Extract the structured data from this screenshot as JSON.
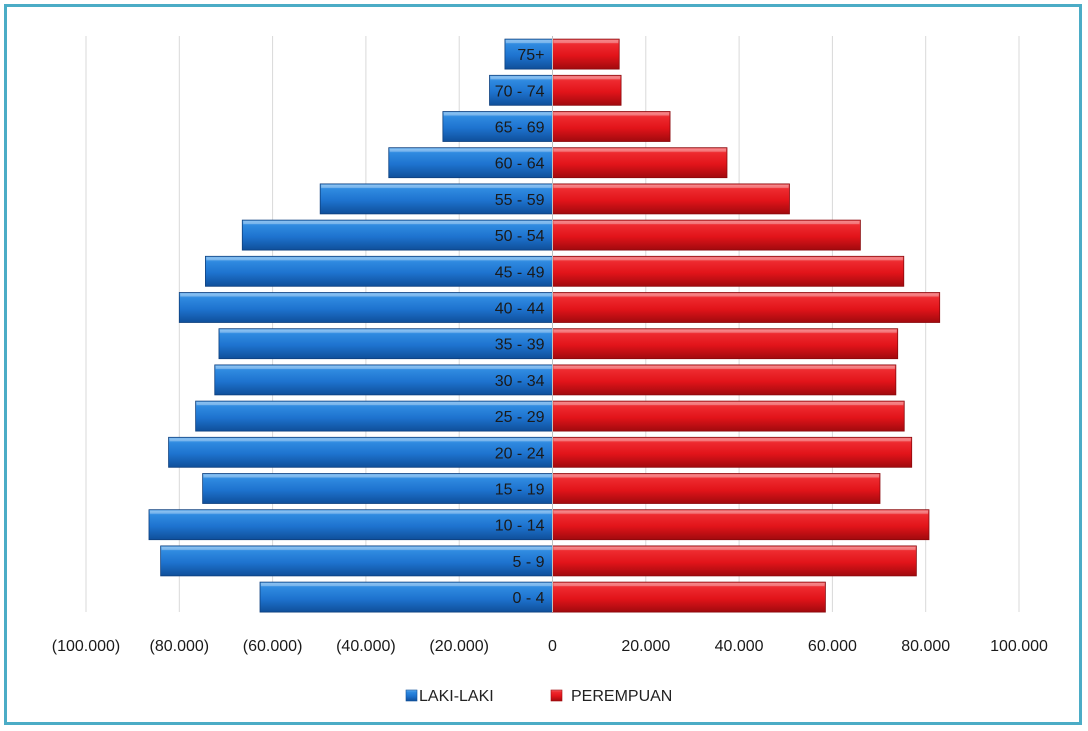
{
  "chart_data": {
    "type": "bar",
    "orientation": "horizontal",
    "layout": "population-pyramid",
    "categories": [
      "0 - 4",
      "5 - 9",
      "10 - 14",
      "15 - 19",
      "20 - 24",
      "25 - 29",
      "30 - 34",
      "35 - 39",
      "40 - 44",
      "45 - 49",
      "50 - 54",
      "55 - 59",
      "60 - 64",
      "65 - 69",
      "70 - 74",
      "75+"
    ],
    "series": [
      {
        "name": "LAKI-LAKI",
        "color": "#1f78d6",
        "values": [
          -62700,
          -84000,
          -86500,
          -75000,
          -82300,
          -76500,
          -72400,
          -71500,
          -80000,
          -74400,
          -66500,
          -49800,
          -35100,
          -23500,
          -13500,
          -10200
        ]
      },
      {
        "name": "PEREMPUAN",
        "color": "#e8141b",
        "values": [
          58500,
          78000,
          80700,
          70200,
          77000,
          75400,
          73600,
          74000,
          83000,
          75300,
          66000,
          50800,
          37400,
          25200,
          14700,
          14300
        ]
      }
    ],
    "xlim": [
      -100000,
      100000
    ],
    "xticks": [
      -100000,
      -80000,
      -60000,
      -40000,
      -20000,
      0,
      20000,
      40000,
      60000,
      80000,
      100000
    ],
    "xtick_labels": [
      "(100.000)",
      "(80.000)",
      "(60.000)",
      "(40.000)",
      "(20.000)",
      "0",
      "20.000",
      "40.000",
      "60.000",
      "80.000",
      "100.000"
    ],
    "grid": "vertical",
    "legend_position": "bottom",
    "title": "",
    "xlabel": "",
    "ylabel": ""
  }
}
